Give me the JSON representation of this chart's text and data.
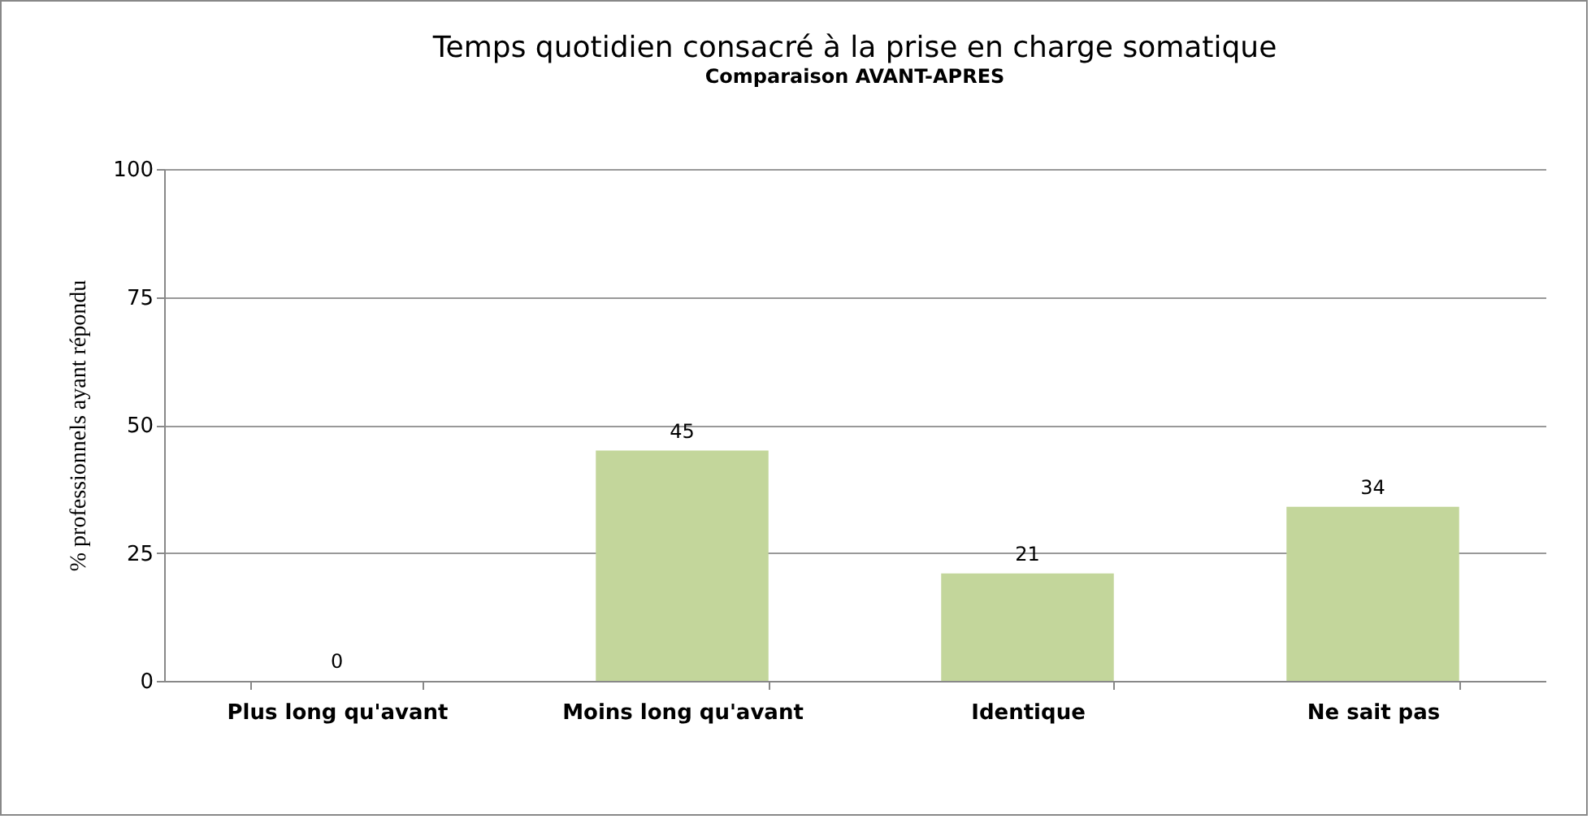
{
  "chart_data": {
    "type": "bar",
    "title": "Temps quotidien consacré à la prise en charge somatique",
    "subtitle": "Comparaison AVANT-APRES",
    "ylabel": "% professionnels ayant répondu",
    "categories": [
      "Plus long qu'avant",
      "Moins long qu'avant",
      "Identique",
      "Ne sait pas"
    ],
    "values": [
      0,
      45,
      21,
      34
    ],
    "color": "#c3d69b",
    "ylim": [
      0,
      100
    ],
    "yticks": [
      0,
      25,
      50,
      75,
      100
    ],
    "grid": "y",
    "data_labels": true
  }
}
